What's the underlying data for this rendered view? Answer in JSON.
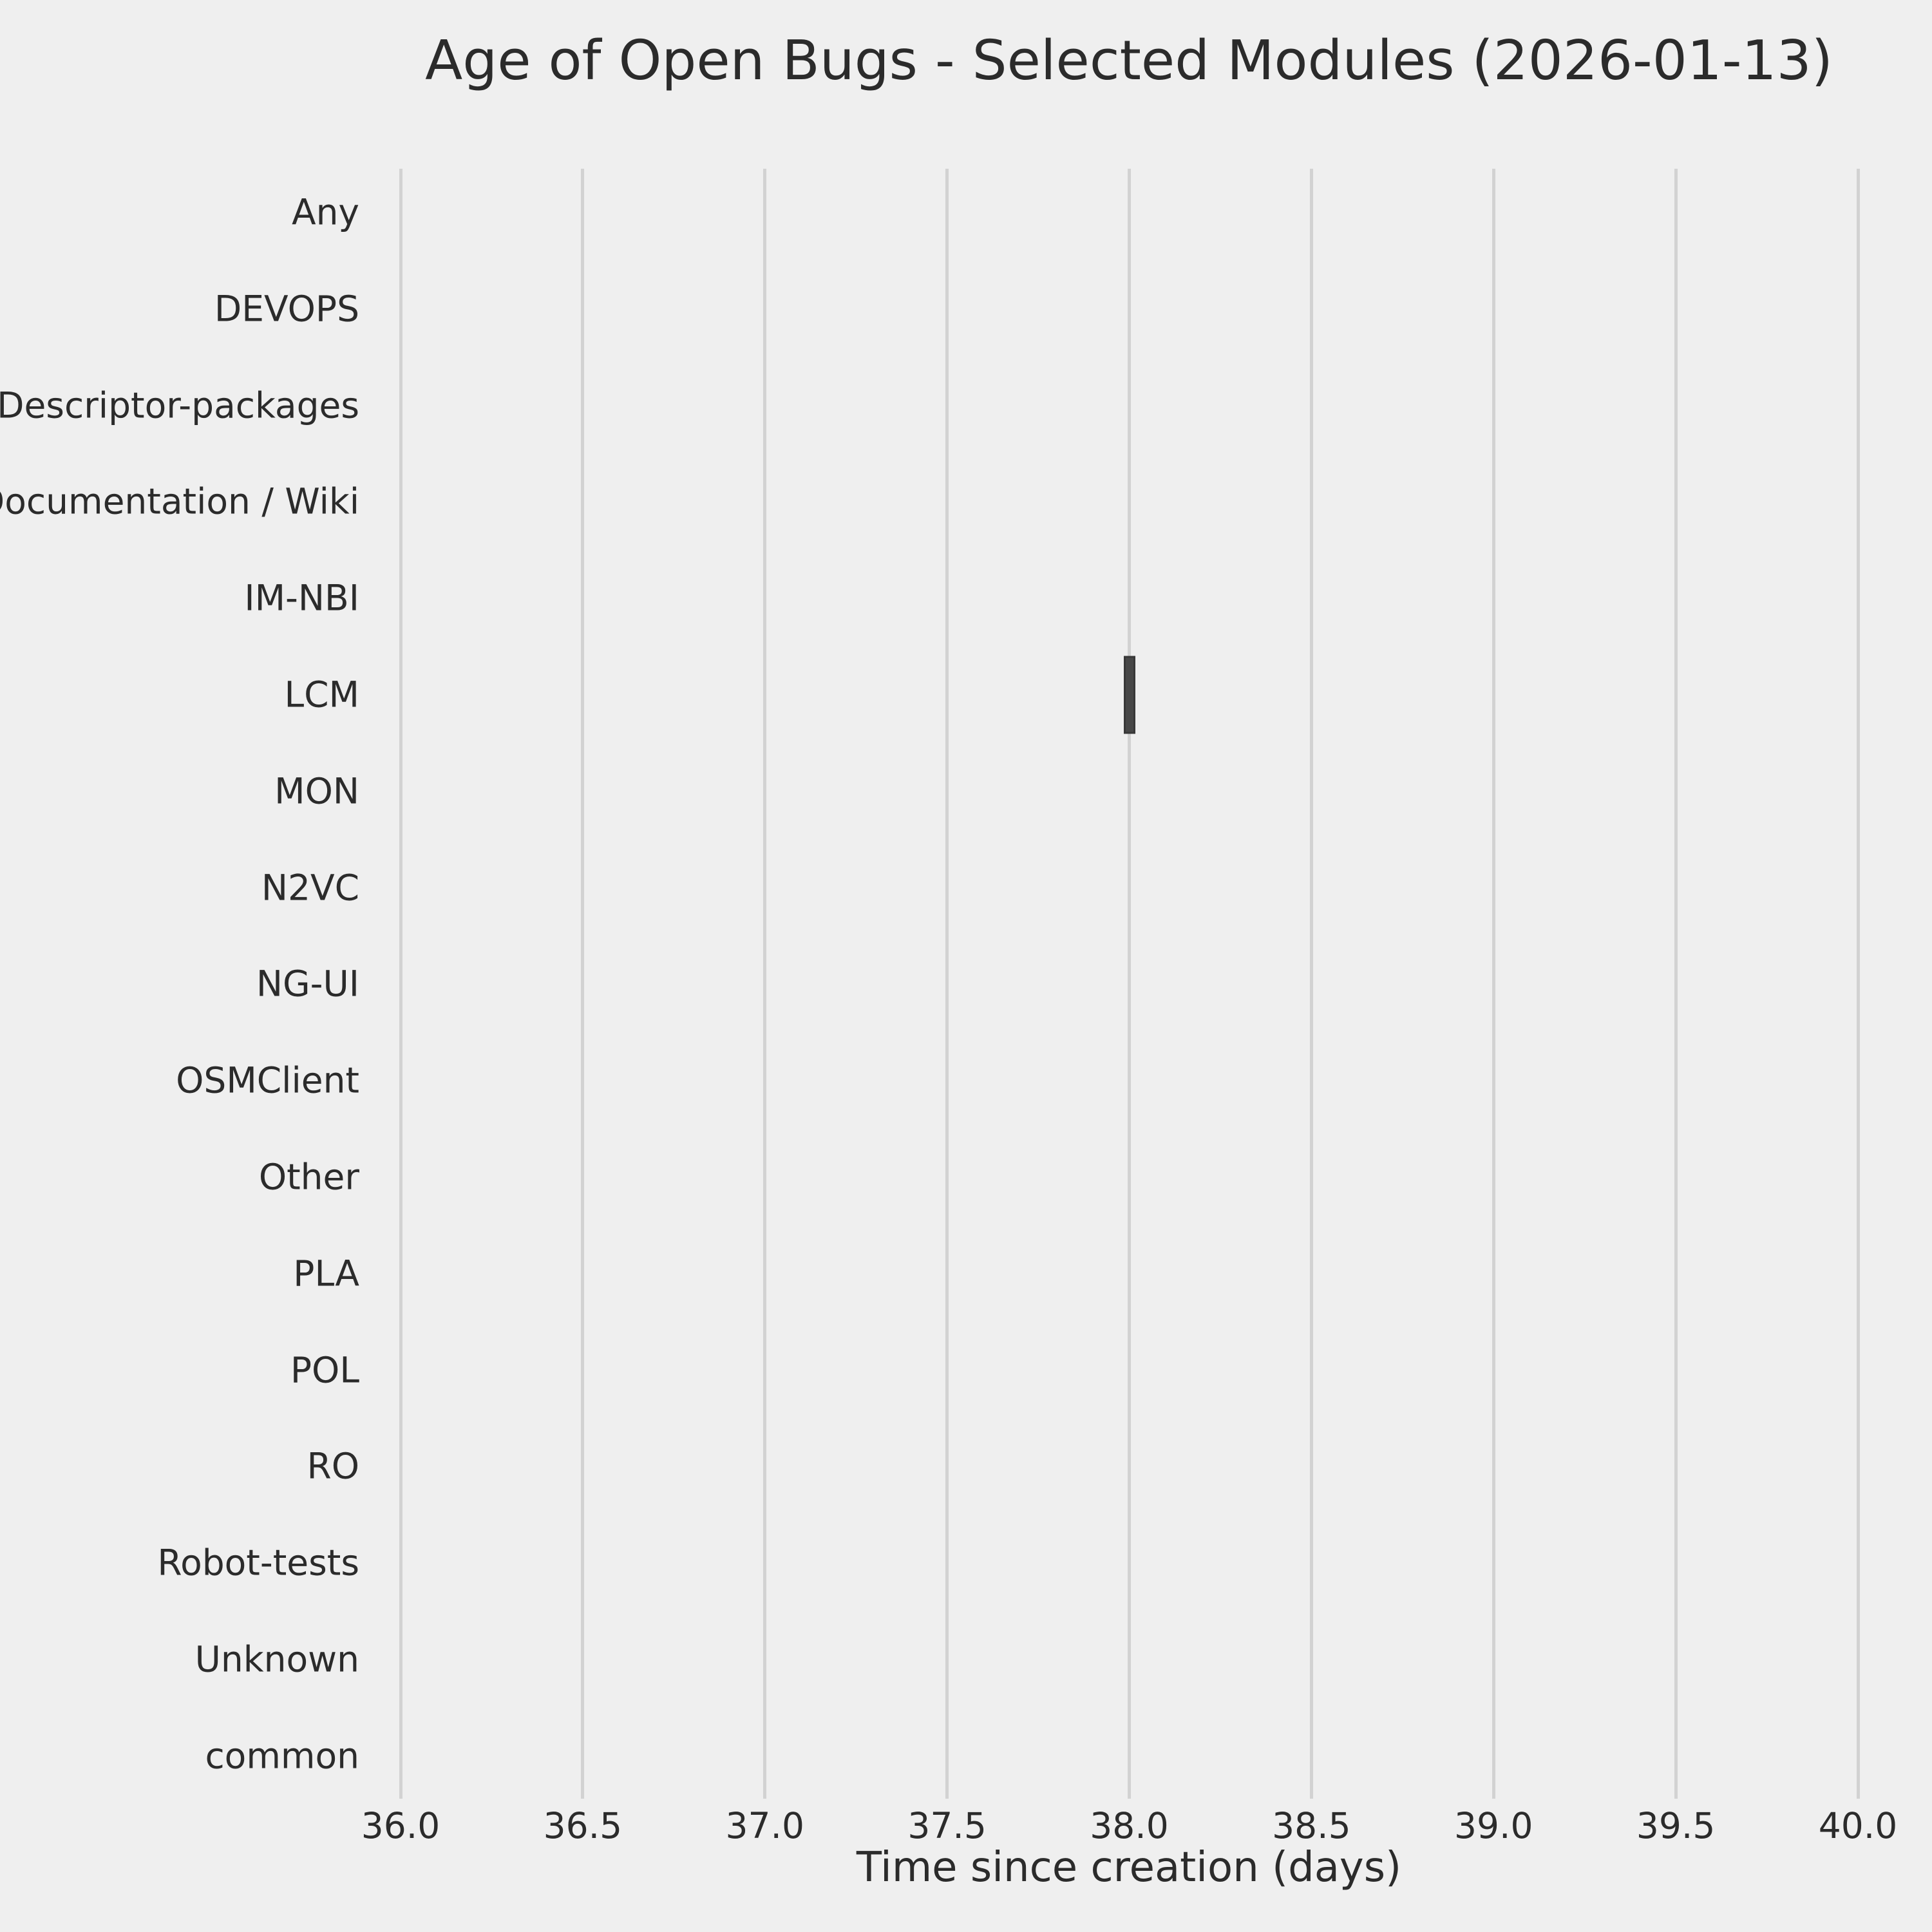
{
  "chart_data": {
    "type": "boxplot",
    "orientation": "horizontal",
    "title": "Age of Open Bugs - Selected Modules (2026-01-13)",
    "xlabel": "Time since creation (days)",
    "ylabel": "",
    "categories": [
      "Any",
      "DEVOPS",
      "Descriptor-packages",
      "Documentation / Wiki",
      "IM-NBI",
      "LCM",
      "MON",
      "N2VC",
      "NG-UI",
      "OSMClient",
      "Other",
      "PLA",
      "POL",
      "RO",
      "Robot-tests",
      "Unknown",
      "common"
    ],
    "values": [
      null,
      null,
      null,
      null,
      null,
      38.0,
      null,
      null,
      null,
      null,
      null,
      null,
      null,
      null,
      null,
      null,
      null
    ],
    "boxes": [
      {
        "category": "LCM",
        "whisker_low": 38.0,
        "q1": 38.0,
        "median": 38.0,
        "q3": 38.0,
        "whisker_high": 38.0
      }
    ],
    "xlim": [
      36.0,
      40.0
    ],
    "xtick_labels": [
      "36.0",
      "36.5",
      "37.0",
      "37.5",
      "38.0",
      "38.5",
      "39.0",
      "39.5",
      "40.0"
    ],
    "grid": {
      "vertical": true,
      "horizontal": false
    },
    "legend_position": "none",
    "colors": {
      "background": "#efefef",
      "gridline": "#d2d2d2",
      "text": "#2b2b2b",
      "box_fill": "#474747",
      "box_edge": "#383838"
    }
  }
}
